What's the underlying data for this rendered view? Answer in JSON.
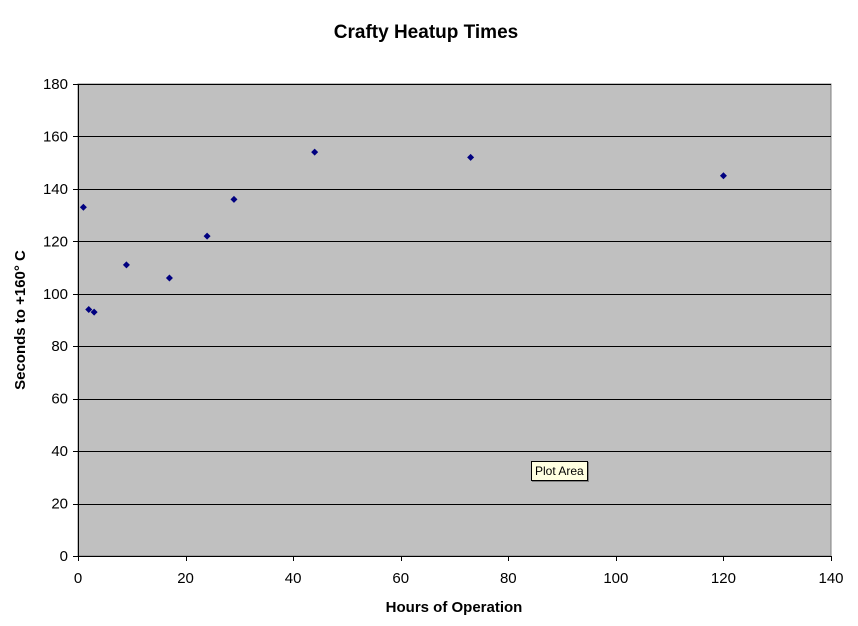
{
  "chart_data": {
    "type": "scatter",
    "title": "Crafty Heatup Times",
    "xlabel": "Hours of Operation",
    "ylabel": "Seconds to +160° C",
    "xlim": [
      0,
      140
    ],
    "ylim": [
      0,
      180
    ],
    "x_ticks": [
      0,
      20,
      40,
      60,
      80,
      100,
      120,
      140
    ],
    "y_ticks": [
      0,
      20,
      40,
      60,
      80,
      100,
      120,
      140,
      160,
      180
    ],
    "grid": "horizontal",
    "plot_background": "#c0c0c0",
    "marker_color": "#000080",
    "marker": "diamond",
    "series": [
      {
        "points": [
          {
            "x": 1,
            "y": 133
          },
          {
            "x": 2,
            "y": 94
          },
          {
            "x": 3,
            "y": 93
          },
          {
            "x": 9,
            "y": 111
          },
          {
            "x": 17,
            "y": 106
          },
          {
            "x": 24,
            "y": 122
          },
          {
            "x": 29,
            "y": 136
          },
          {
            "x": 44,
            "y": 154
          },
          {
            "x": 73,
            "y": 152
          },
          {
            "x": 120,
            "y": 145
          }
        ]
      }
    ]
  },
  "tooltip": {
    "text": "Plot Area"
  }
}
